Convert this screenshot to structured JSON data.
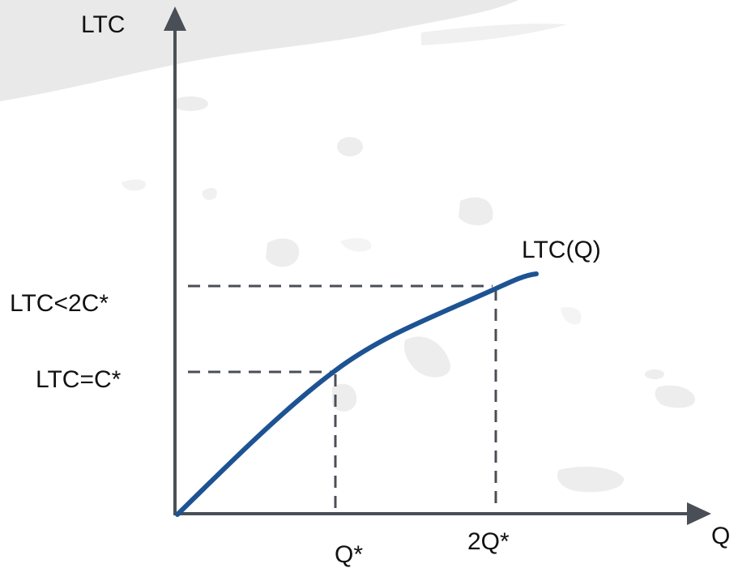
{
  "diagram": {
    "y_axis_label": "LTC",
    "x_axis_label": "Q",
    "curve_label": "LTC(Q)",
    "y_tick_high": "LTC<2C*",
    "y_tick_low": "LTC=C*",
    "x_tick_1": "Q*",
    "x_tick_2": "2Q*"
  },
  "colors": {
    "axis": "#4a4f57",
    "curve": "#1d5393",
    "guide": "#4a4f57",
    "splash": "#e9e9e9"
  }
}
